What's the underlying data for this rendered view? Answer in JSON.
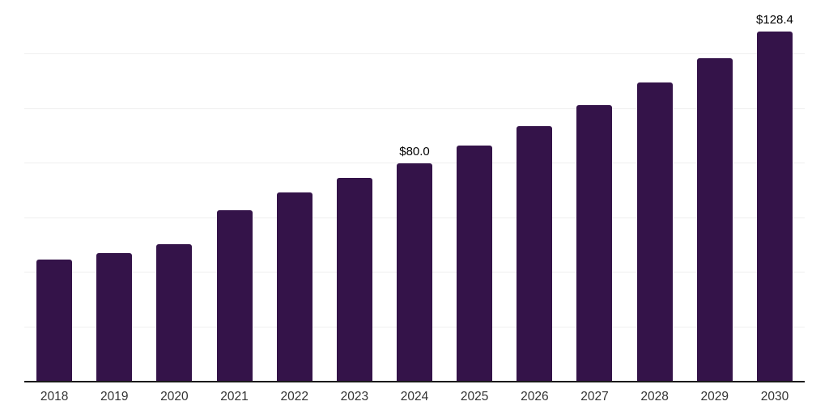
{
  "chart_data": {
    "type": "bar",
    "title": "",
    "xlabel": "",
    "ylabel": "",
    "categories": [
      "2018",
      "2019",
      "2020",
      "2021",
      "2022",
      "2023",
      "2024",
      "2025",
      "2026",
      "2027",
      "2028",
      "2029",
      "2030"
    ],
    "values": [
      44.7,
      47.3,
      50.4,
      62.9,
      69.5,
      74.7,
      80.0,
      86.6,
      93.7,
      101.4,
      109.7,
      118.7,
      128.4
    ],
    "bar_labels": [
      "",
      "",
      "",
      "",
      "",
      "",
      "$80.0",
      "",
      "",
      "",
      "",
      "",
      "$128.4"
    ],
    "ylim": [
      0,
      140
    ],
    "gridline_step": 20,
    "grid": "horizontal-only",
    "legend_position": "none",
    "y_axis_tick_labels_visible": false,
    "colors": {
      "bar": "#341349",
      "gridline": "#efefef",
      "axis_line": "#1a1a1a",
      "tick_label": "#333333",
      "value_label": "#000000",
      "background": "#ffffff"
    }
  }
}
